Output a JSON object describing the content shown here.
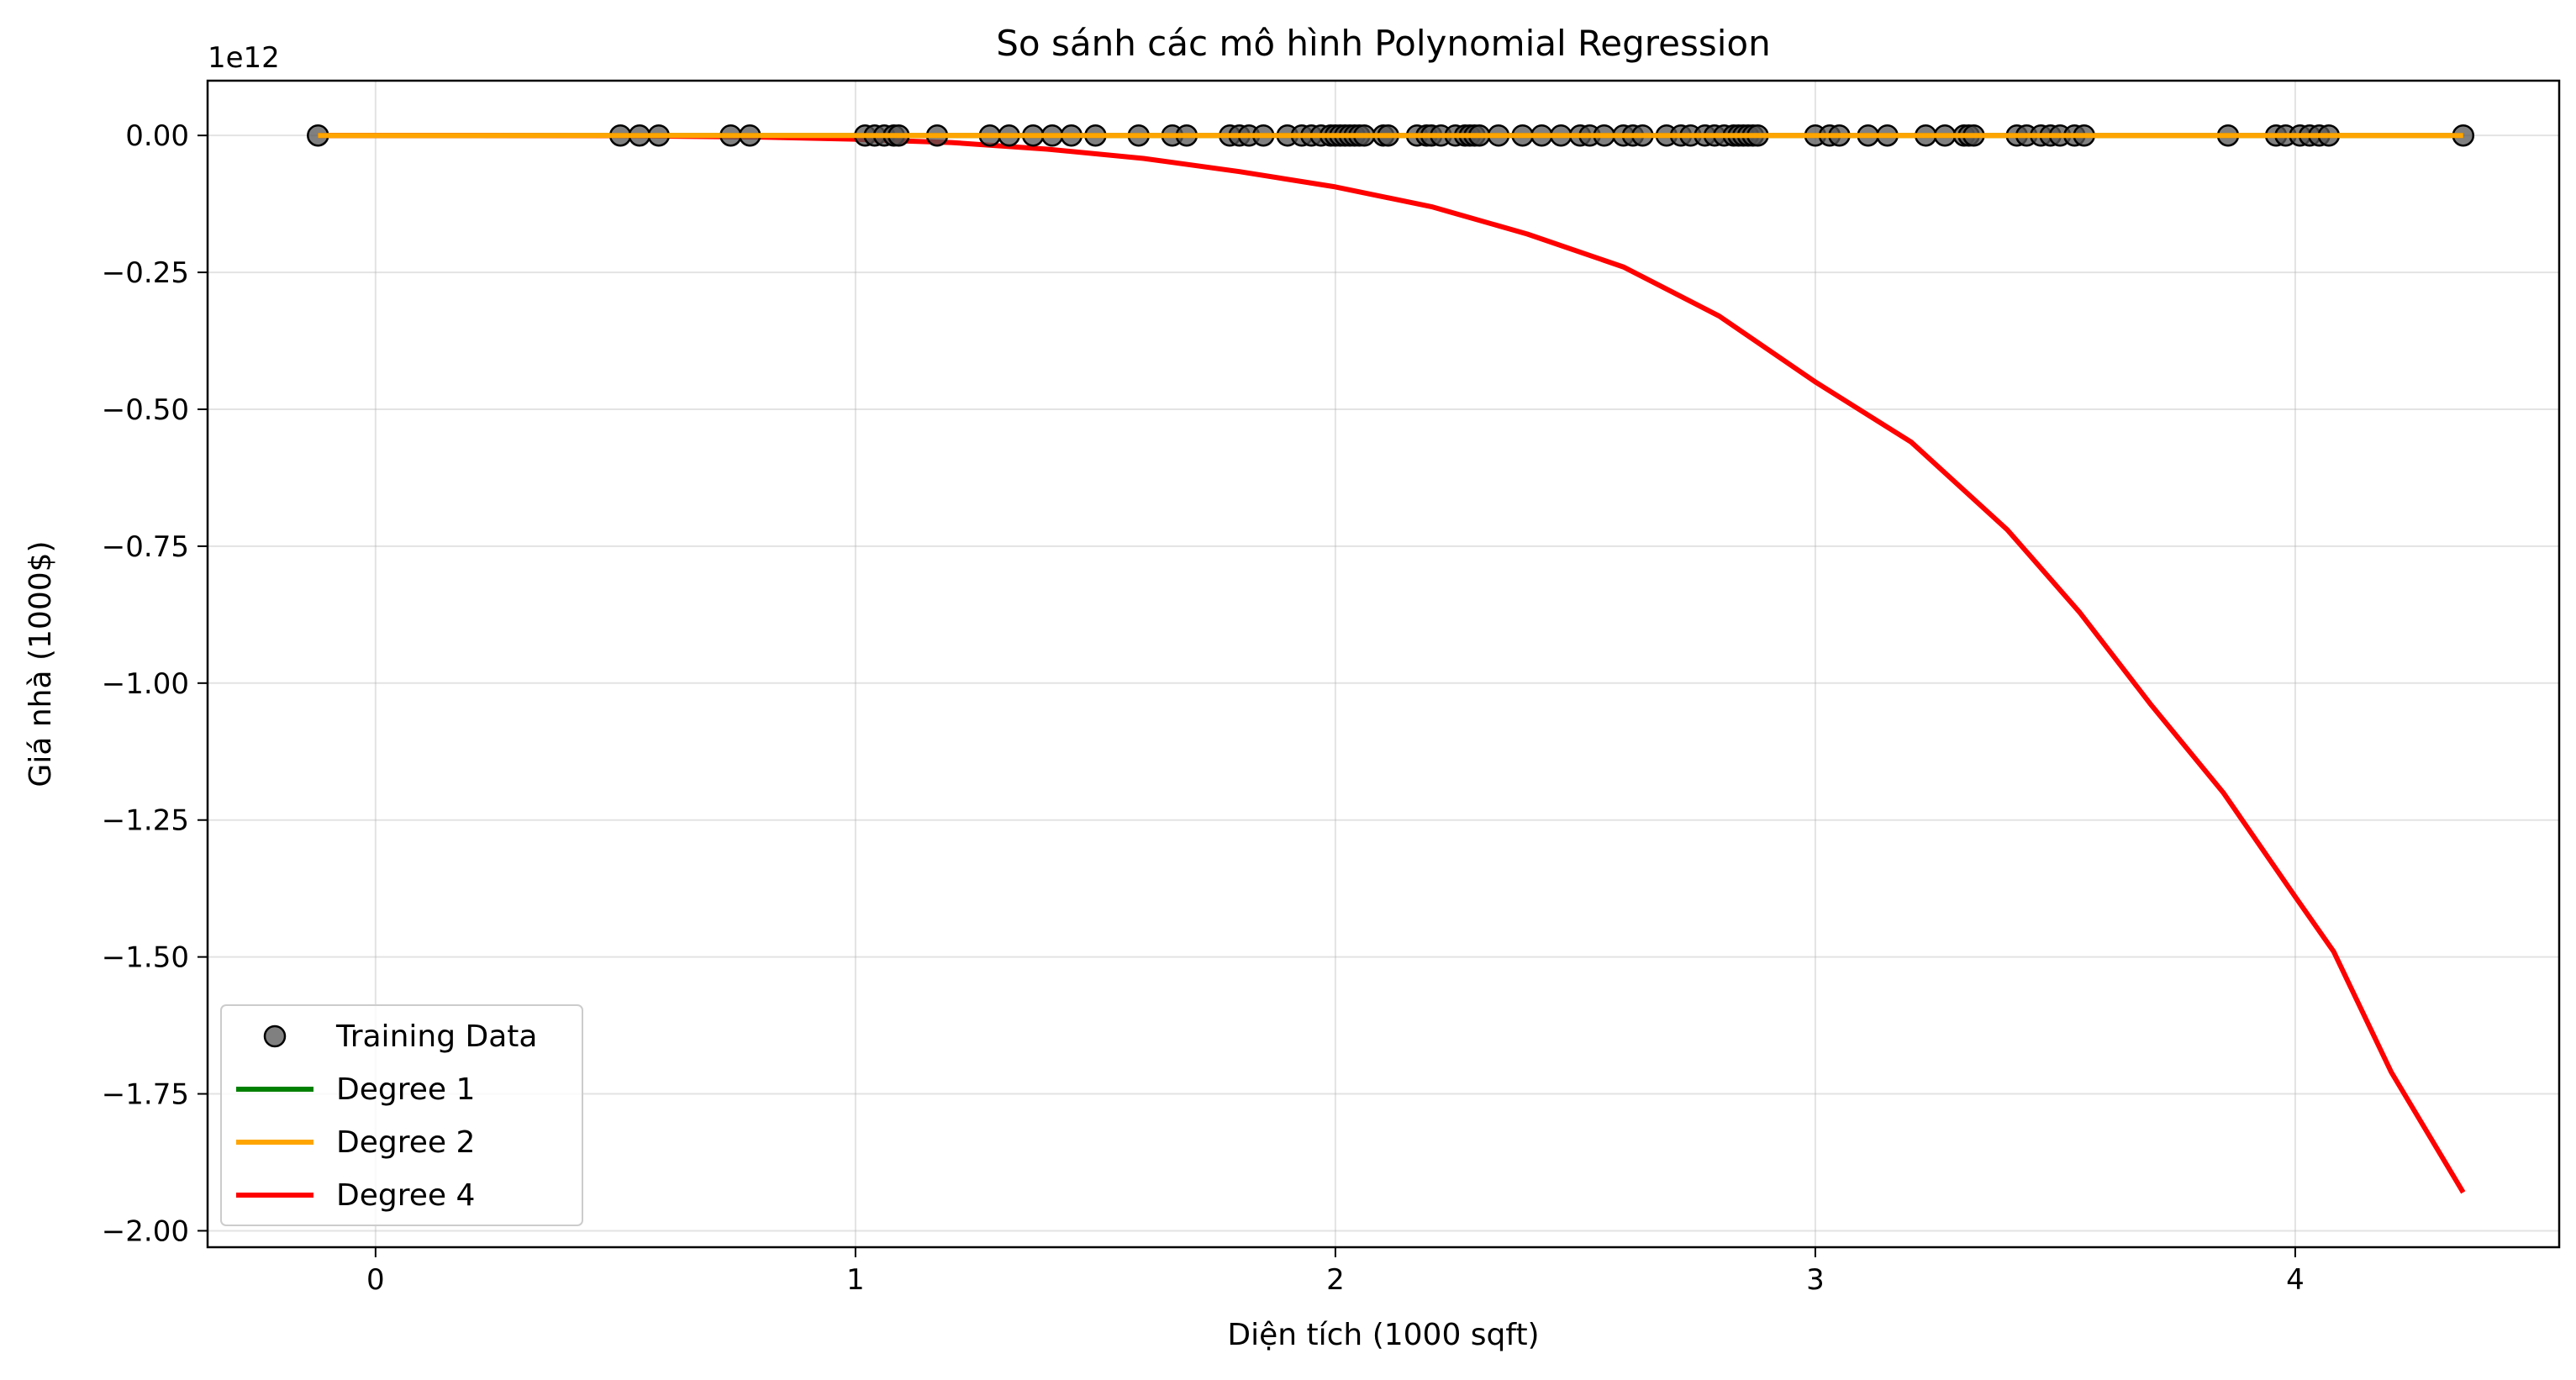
{
  "chart_data": {
    "type": "line",
    "title": "So sánh các mô hình Polynomial Regression",
    "xlabel": "Diện tích (1000 sqft)",
    "ylabel": "Giá nhà (1000$)",
    "y_offset_label": "1e12",
    "xlim": [
      -0.35,
      4.55
    ],
    "ylim": [
      -2.03,
      0.1
    ],
    "x_ticks": [
      0,
      1,
      2,
      3,
      4
    ],
    "y_ticks": [
      0.0,
      -0.25,
      -0.5,
      -0.75,
      -1.0,
      -1.25,
      -1.5,
      -1.75,
      -2.0
    ],
    "x_tick_labels": [
      "0",
      "1",
      "2",
      "3",
      "4"
    ],
    "y_tick_labels": [
      "0.00",
      "−0.25",
      "−0.50",
      "−0.75",
      "−1.00",
      "−1.25",
      "−1.50",
      "−1.75",
      "−2.00"
    ],
    "grid": true,
    "legend_position": "lower-left",
    "scatter": {
      "name": "Training Data",
      "color": "#555555",
      "x": [
        -0.12,
        0.51,
        0.55,
        0.59,
        0.74,
        0.78,
        1.02,
        1.04,
        1.06,
        1.08,
        1.09,
        1.17,
        1.28,
        1.32,
        1.37,
        1.41,
        1.45,
        1.5,
        1.59,
        1.66,
        1.69,
        1.78,
        1.8,
        1.82,
        1.85,
        1.9,
        1.93,
        1.95,
        1.97,
        1.99,
        2.0,
        2.01,
        2.02,
        2.03,
        2.04,
        2.05,
        2.06,
        2.1,
        2.11,
        2.17,
        2.19,
        2.2,
        2.22,
        2.25,
        2.27,
        2.28,
        2.29,
        2.3,
        2.34,
        2.39,
        2.43,
        2.47,
        2.51,
        2.53,
        2.56,
        2.6,
        2.62,
        2.64,
        2.69,
        2.72,
        2.74,
        2.77,
        2.79,
        2.81,
        2.83,
        2.84,
        2.85,
        2.86,
        2.87,
        2.88,
        3.0,
        3.03,
        3.05,
        3.11,
        3.15,
        3.23,
        3.27,
        3.31,
        3.32,
        3.33,
        3.42,
        3.44,
        3.47,
        3.49,
        3.51,
        3.54,
        3.56,
        3.86,
        3.96,
        3.98,
        4.01,
        4.03,
        4.05,
        4.07,
        4.35
      ],
      "y": [
        0,
        0,
        0,
        0,
        0,
        0,
        0,
        0,
        0,
        0,
        0,
        0,
        0,
        0,
        0,
        0,
        0,
        0,
        0,
        0,
        0,
        0,
        0,
        0,
        0,
        0,
        0,
        0,
        0,
        0,
        0,
        0,
        0,
        0,
        0,
        0,
        0,
        0,
        0,
        0,
        0,
        0,
        0,
        0,
        0,
        0,
        0,
        0,
        0,
        0,
        0,
        0,
        0,
        0,
        0,
        0,
        0,
        0,
        0,
        0,
        0,
        0,
        0,
        0,
        0,
        0,
        0,
        0,
        0,
        0,
        0,
        0,
        0,
        0,
        0,
        0,
        0,
        0,
        0,
        0,
        0,
        0,
        0,
        0,
        0,
        0,
        0,
        0,
        0,
        0,
        0,
        0,
        0,
        0,
        0
      ]
    },
    "series": [
      {
        "name": "Degree 1",
        "color": "#008000",
        "x": [
          -0.12,
          4.35
        ],
        "y": [
          0,
          0
        ]
      },
      {
        "name": "Degree 2",
        "color": "#FFA500",
        "x": [
          -0.12,
          4.35
        ],
        "y": [
          0,
          0
        ]
      },
      {
        "name": "Degree 4",
        "color": "#FF0000",
        "x": [
          -0.12,
          0.2,
          0.5,
          0.8,
          1.0,
          1.2,
          1.4,
          1.6,
          1.8,
          2.0,
          2.2,
          2.4,
          2.6,
          2.8,
          3.0,
          3.2,
          3.4,
          3.55,
          3.7,
          3.85,
          4.0,
          4.08,
          4.2,
          4.35
        ],
        "y": [
          0.0,
          0.0,
          -0.0005,
          -0.003,
          -0.007,
          -0.013,
          -0.025,
          -0.042,
          -0.066,
          -0.094,
          -0.13,
          -0.18,
          -0.24,
          -0.33,
          -0.45,
          -0.56,
          -0.72,
          -0.87,
          -1.04,
          -1.2,
          -1.39,
          -1.49,
          -1.71,
          -1.93
        ]
      }
    ]
  }
}
